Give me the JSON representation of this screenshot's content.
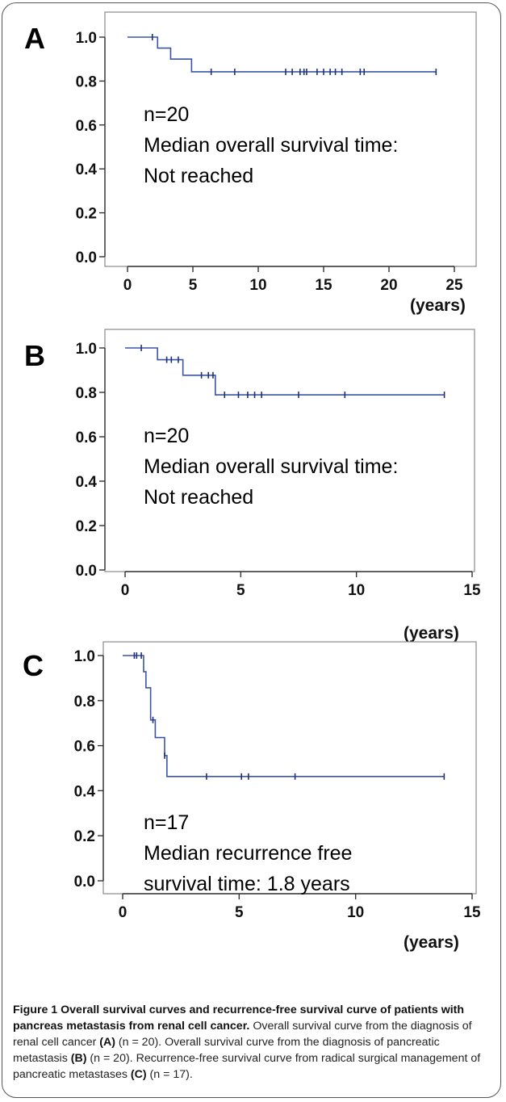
{
  "chart_data": [
    {
      "type": "line",
      "panel_label": "A",
      "annotation": [
        "n=20",
        "Median overall survival time:",
        "Not reached"
      ],
      "x_unit_label": "(years)",
      "xlim": [
        0,
        25
      ],
      "ylim": [
        0.0,
        1.0
      ],
      "xticks": [
        "0",
        "5",
        "10",
        "15",
        "20",
        "25"
      ],
      "yticks": [
        "1.0",
        "0.8",
        "0.6",
        "0.4",
        "0.2",
        "0.0"
      ],
      "steps": [
        [
          0,
          1.0
        ],
        [
          2.3,
          0.95
        ],
        [
          3.3,
          0.9
        ],
        [
          4.9,
          0.842
        ],
        [
          23.6,
          0.842
        ]
      ],
      "censored_x": [
        1.9,
        6.4,
        8.2,
        12.1,
        12.6,
        13.2,
        13.5,
        13.7,
        14.5,
        15.0,
        15.5,
        15.9,
        16.4,
        17.8,
        18.1,
        23.6
      ]
    },
    {
      "type": "line",
      "panel_label": "B",
      "annotation": [
        "n=20",
        "Median overall survival time:",
        "Not reached"
      ],
      "x_unit_label": "(years)",
      "xlim": [
        0,
        15
      ],
      "ylim": [
        0.0,
        1.0
      ],
      "xticks": [
        "0",
        "5",
        "10",
        "15"
      ],
      "yticks": [
        "1.0",
        "0.8",
        "0.6",
        "0.4",
        "0.2",
        "0.0"
      ],
      "steps": [
        [
          0,
          1.0
        ],
        [
          1.4,
          0.947
        ],
        [
          2.5,
          0.877
        ],
        [
          3.9,
          0.789
        ],
        [
          13.8,
          0.789
        ]
      ],
      "censored_x": [
        0.7,
        1.8,
        2.0,
        2.3,
        3.3,
        3.6,
        3.8,
        4.3,
        4.9,
        5.3,
        5.6,
        5.9,
        7.5,
        9.5,
        13.8
      ]
    },
    {
      "type": "line",
      "panel_label": "C",
      "annotation": [
        "n=17",
        "Median recurrence free",
        "survival time:  1.8 years"
      ],
      "x_unit_label": "(years)",
      "xlim": [
        0,
        15
      ],
      "ylim": [
        0.0,
        1.0
      ],
      "xticks": [
        "0",
        "5",
        "10",
        "15"
      ],
      "yticks": [
        "1.0",
        "0.8",
        "0.6",
        "0.4",
        "0.2",
        "0.0"
      ],
      "steps": [
        [
          0,
          1.0
        ],
        [
          0.9,
          0.928
        ],
        [
          1.0,
          0.857
        ],
        [
          1.2,
          0.714
        ],
        [
          1.4,
          0.636
        ],
        [
          1.8,
          0.556
        ],
        [
          1.9,
          0.463
        ],
        [
          13.8,
          0.463
        ]
      ],
      "censored_x": [
        0.5,
        0.6,
        0.8,
        1.3,
        1.8,
        3.6,
        5.1,
        5.4,
        7.4,
        13.8
      ]
    }
  ],
  "caption": {
    "bold": "Figure 1 Overall survival curves and recurrence-free survival curve of patients with pancreas metastasis from renal cell cancer.",
    "line1_rest": " Overall",
    "line2": "survival curve from the diagnosis of renal cell cancer ",
    "line2_label": "(A)",
    "line2_n": " (n = 20). Overall",
    "line3": "survival curve from the diagnosis of pancreatic metastasis ",
    "line3_label": "(B)",
    "line3_n": " (n = 20).",
    "line4": "Recurrence-free survival curve from radical surgical management of",
    "line5": "pancreatic metastases ",
    "line5_label": "(C)",
    "line5_n": " (n = 17)."
  }
}
